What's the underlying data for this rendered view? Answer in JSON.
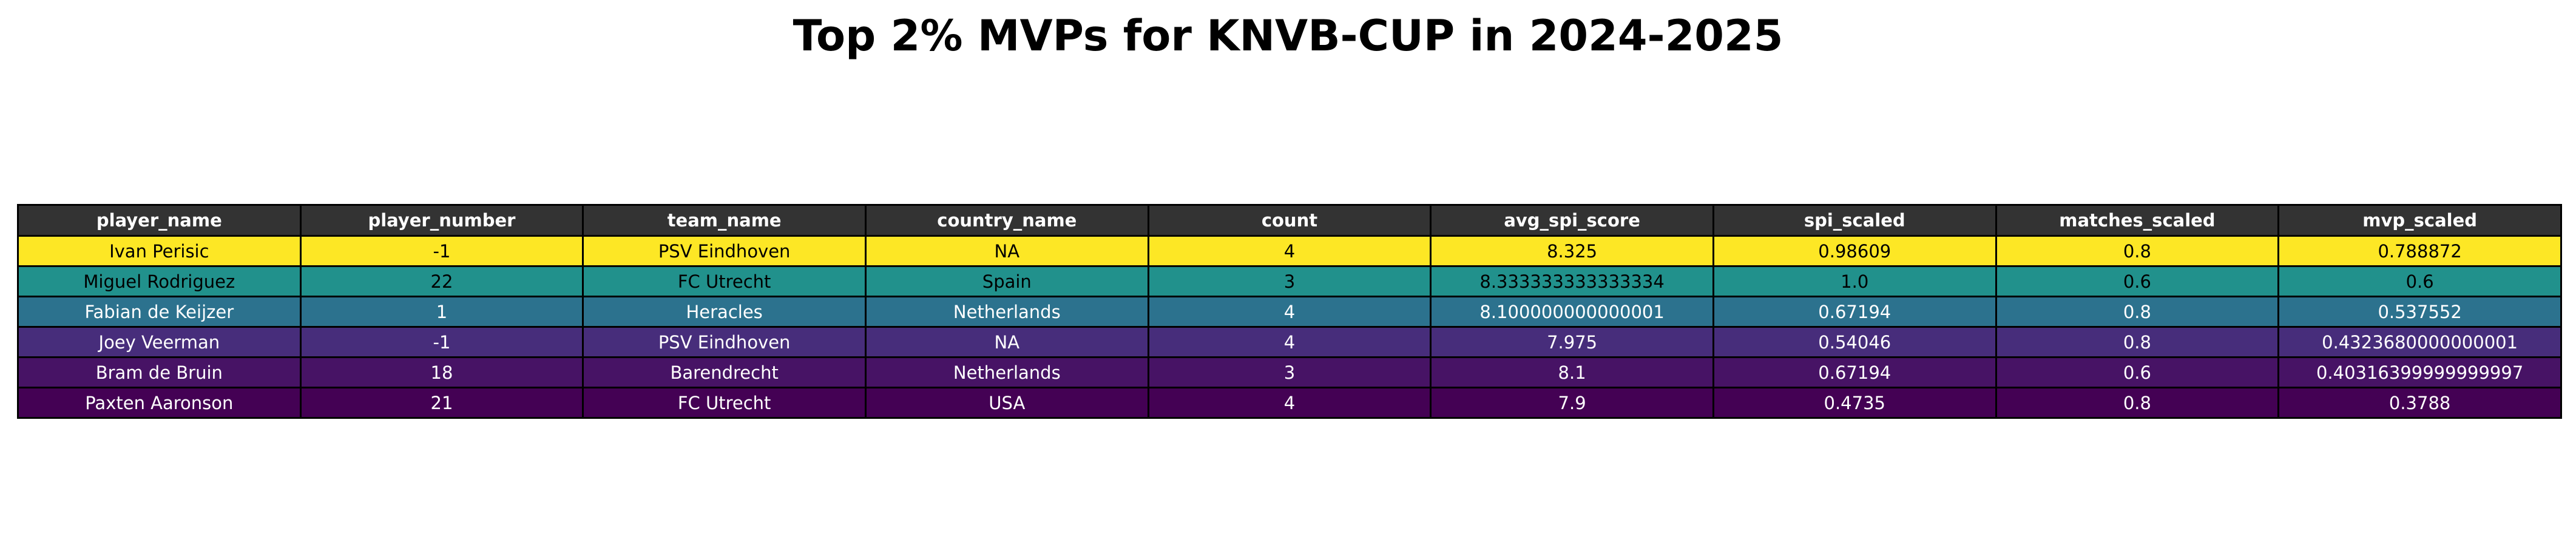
{
  "chart_data": {
    "type": "table",
    "title": "Top 2% MVPs for KNVB-CUP in 2024-2025",
    "columns": [
      "player_name",
      "player_number",
      "team_name",
      "country_name",
      "count",
      "avg_spi_score",
      "spi_scaled",
      "matches_scaled",
      "mvp_scaled"
    ],
    "rows": [
      {
        "cells": [
          "Ivan Perisic",
          "-1",
          "PSV Eindhoven",
          "NA",
          "4",
          "8.325",
          "0.98609",
          "0.8",
          "0.788872"
        ],
        "color": "#fde725",
        "text_color": "#000000"
      },
      {
        "cells": [
          "Miguel Rodriguez",
          "22",
          "FC Utrecht",
          "Spain",
          "3",
          "8.333333333333334",
          "1.0",
          "0.6",
          "0.6"
        ],
        "color": "#21918c",
        "text_color": "#000000"
      },
      {
        "cells": [
          "Fabian de Keijzer",
          "1",
          "Heracles",
          "Netherlands",
          "4",
          "8.100000000000001",
          "0.67194",
          "0.8",
          "0.537552"
        ],
        "color": "#2c728e",
        "text_color": "#ffffff"
      },
      {
        "cells": [
          "Joey Veerman",
          "-1",
          "PSV Eindhoven",
          "NA",
          "4",
          "7.975",
          "0.54046",
          "0.8",
          "0.4323680000000001"
        ],
        "color": "#472d7b",
        "text_color": "#ffffff"
      },
      {
        "cells": [
          "Bram de Bruin",
          "18",
          "Barendrecht",
          "Netherlands",
          "3",
          "8.1",
          "0.67194",
          "0.6",
          "0.40316399999999997"
        ],
        "color": "#471365",
        "text_color": "#ffffff"
      },
      {
        "cells": [
          "Paxten Aaronson",
          "21",
          "FC Utrecht",
          "USA",
          "4",
          "7.9",
          "0.4735",
          "0.8",
          "0.3788"
        ],
        "color": "#440154",
        "text_color": "#ffffff"
      }
    ],
    "header_color": "#333333",
    "header_text_color": "#ffffff"
  }
}
